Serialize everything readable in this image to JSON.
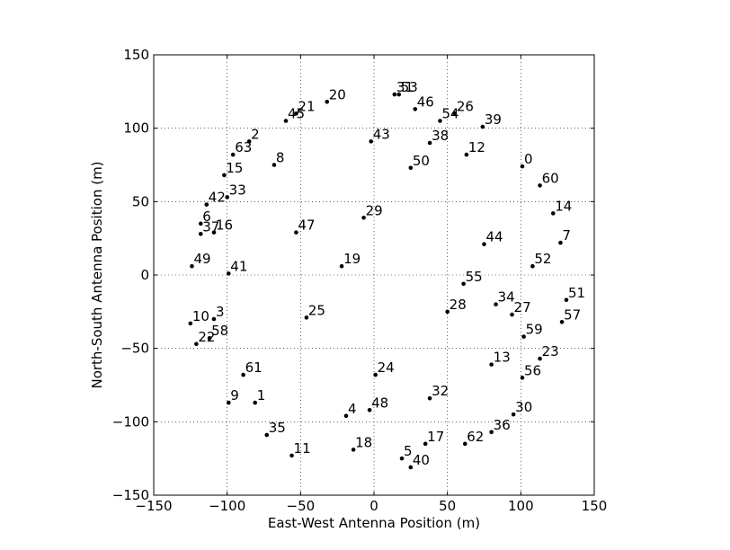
{
  "chart_data": {
    "type": "scatter",
    "title": "",
    "xlabel": "East-West Antenna Position (m)",
    "ylabel": "North-South Antenna Position (m)",
    "xlim": [
      -150,
      150
    ],
    "ylim": [
      -150,
      150
    ],
    "xticks": [
      -150,
      -100,
      -50,
      0,
      50,
      100,
      150
    ],
    "yticks": [
      -150,
      -100,
      -50,
      0,
      50,
      100,
      150
    ],
    "xtick_labels": [
      "−150",
      "−100",
      "−50",
      "0",
      "50",
      "100",
      "150"
    ],
    "ytick_labels": [
      "−150",
      "−100",
      "−50",
      "0",
      "50",
      "100",
      "150"
    ],
    "grid": true,
    "grid_style": "dotted",
    "marker_color": "#000000",
    "points": [
      {
        "label": "0",
        "x": 101,
        "y": 74
      },
      {
        "label": "1",
        "x": -81,
        "y": -87
      },
      {
        "label": "2",
        "x": -85,
        "y": 91
      },
      {
        "label": "3",
        "x": -109,
        "y": -30
      },
      {
        "label": "4",
        "x": -19,
        "y": -96
      },
      {
        "label": "5",
        "x": 19,
        "y": -125
      },
      {
        "label": "6",
        "x": -118,
        "y": 35
      },
      {
        "label": "7",
        "x": 127,
        "y": 22
      },
      {
        "label": "8",
        "x": -68,
        "y": 75
      },
      {
        "label": "9",
        "x": -99,
        "y": -87
      },
      {
        "label": "10",
        "x": -125,
        "y": -33
      },
      {
        "label": "11",
        "x": -56,
        "y": -123
      },
      {
        "label": "12",
        "x": 63,
        "y": 82
      },
      {
        "label": "13",
        "x": 80,
        "y": -61
      },
      {
        "label": "14",
        "x": 122,
        "y": 42
      },
      {
        "label": "15",
        "x": -102,
        "y": 68
      },
      {
        "label": "16",
        "x": -109,
        "y": 29
      },
      {
        "label": "17",
        "x": 35,
        "y": -115
      },
      {
        "label": "18",
        "x": -14,
        "y": -119
      },
      {
        "label": "19",
        "x": -22,
        "y": 6
      },
      {
        "label": "20",
        "x": -32,
        "y": 118
      },
      {
        "label": "21",
        "x": -53,
        "y": 110
      },
      {
        "label": "22",
        "x": -121,
        "y": -47
      },
      {
        "label": "23",
        "x": 113,
        "y": -57
      },
      {
        "label": "24",
        "x": 1,
        "y": -68
      },
      {
        "label": "25",
        "x": -46,
        "y": -29
      },
      {
        "label": "26",
        "x": 55,
        "y": 110
      },
      {
        "label": "27",
        "x": 94,
        "y": -27
      },
      {
        "label": "28",
        "x": 50,
        "y": -25
      },
      {
        "label": "29",
        "x": -7,
        "y": 39
      },
      {
        "label": "30",
        "x": 95,
        "y": -95
      },
      {
        "label": "31",
        "x": 14,
        "y": 123
      },
      {
        "label": "32",
        "x": 38,
        "y": -84
      },
      {
        "label": "33",
        "x": -100,
        "y": 53
      },
      {
        "label": "34",
        "x": 83,
        "y": -20
      },
      {
        "label": "35",
        "x": -73,
        "y": -109
      },
      {
        "label": "36",
        "x": 80,
        "y": -107
      },
      {
        "label": "37",
        "x": -118,
        "y": 28
      },
      {
        "label": "38",
        "x": 38,
        "y": 90
      },
      {
        "label": "39",
        "x": 74,
        "y": 101
      },
      {
        "label": "40",
        "x": 25,
        "y": -131
      },
      {
        "label": "41",
        "x": -99,
        "y": 1
      },
      {
        "label": "42",
        "x": -114,
        "y": 48
      },
      {
        "label": "43",
        "x": -2,
        "y": 91
      },
      {
        "label": "44",
        "x": 75,
        "y": 21
      },
      {
        "label": "45",
        "x": -60,
        "y": 105
      },
      {
        "label": "46",
        "x": 28,
        "y": 113
      },
      {
        "label": "47",
        "x": -53,
        "y": 29
      },
      {
        "label": "48",
        "x": -3,
        "y": -92
      },
      {
        "label": "49",
        "x": -124,
        "y": 6
      },
      {
        "label": "50",
        "x": 25,
        "y": 73
      },
      {
        "label": "51",
        "x": 131,
        "y": -17
      },
      {
        "label": "52",
        "x": 108,
        "y": 6
      },
      {
        "label": "53",
        "x": 17,
        "y": 123
      },
      {
        "label": "54",
        "x": 45,
        "y": 105
      },
      {
        "label": "55",
        "x": 61,
        "y": -6
      },
      {
        "label": "56",
        "x": 101,
        "y": -70
      },
      {
        "label": "57",
        "x": 128,
        "y": -32
      },
      {
        "label": "58",
        "x": -112,
        "y": -43
      },
      {
        "label": "59",
        "x": 102,
        "y": -42
      },
      {
        "label": "60",
        "x": 113,
        "y": 61
      },
      {
        "label": "61",
        "x": -89,
        "y": -68
      },
      {
        "label": "62",
        "x": 62,
        "y": -115
      },
      {
        "label": "63",
        "x": -96,
        "y": 82
      }
    ]
  }
}
